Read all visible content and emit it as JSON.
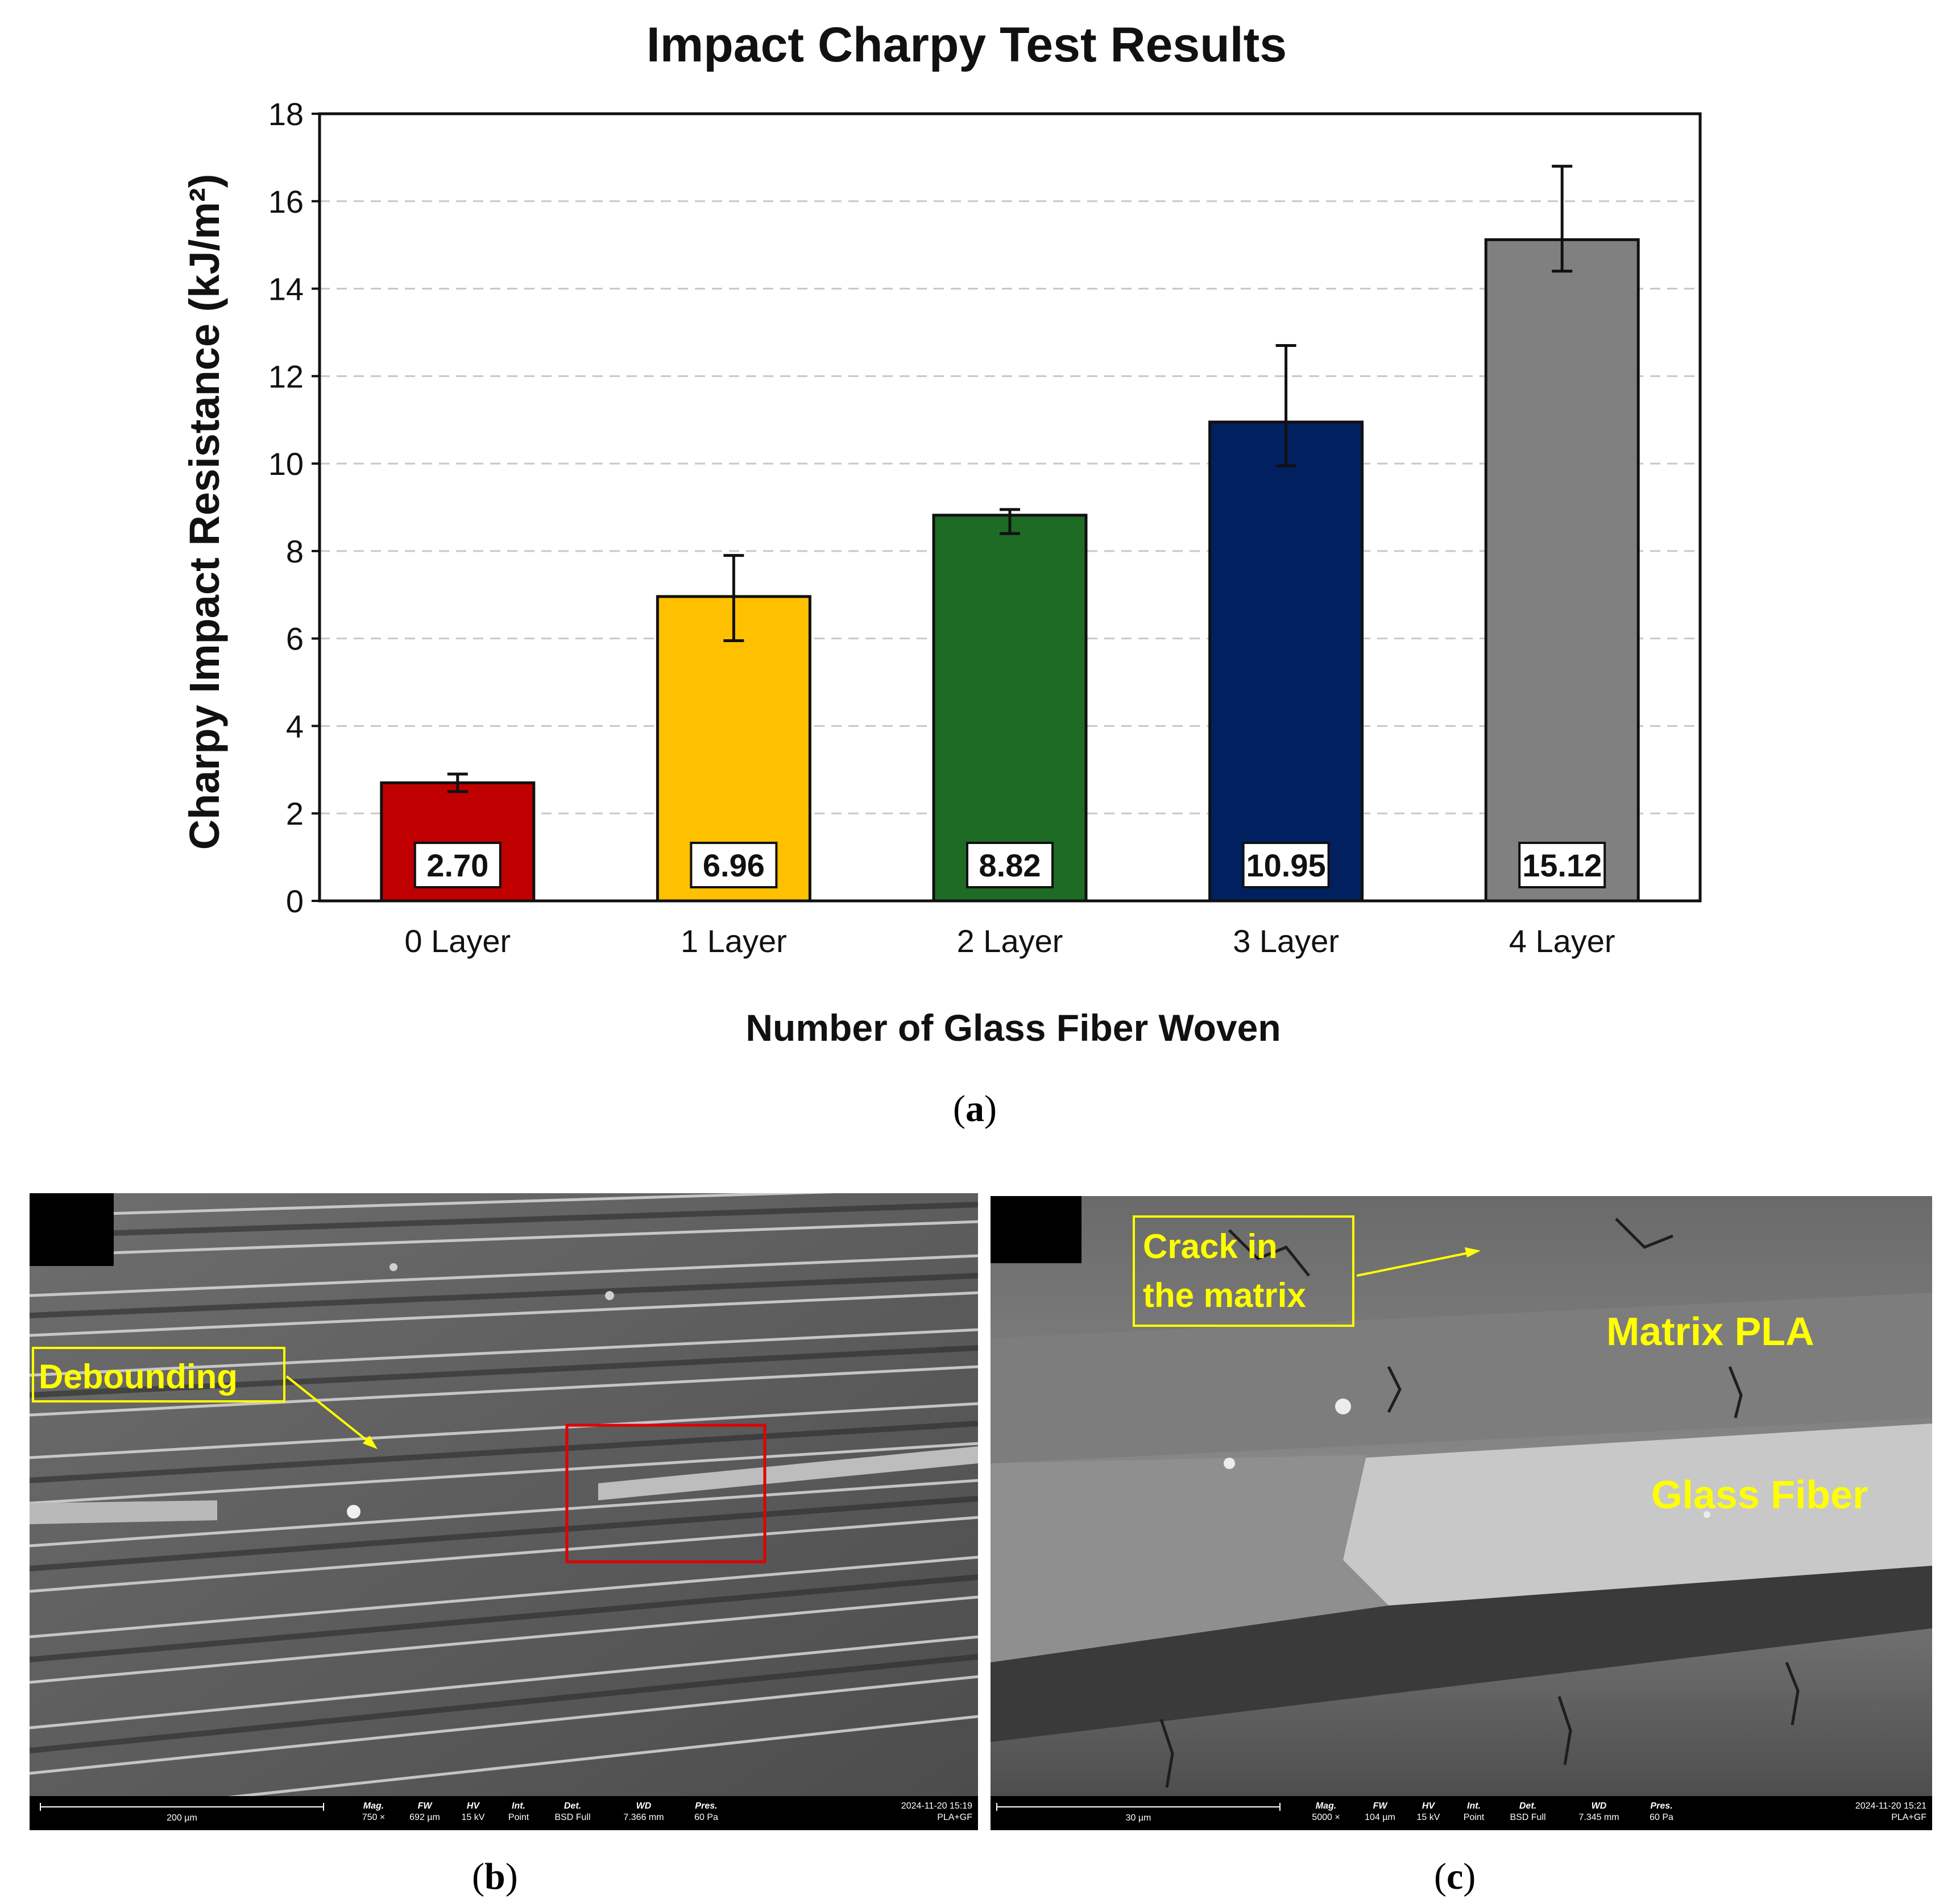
{
  "chart_data": {
    "type": "bar",
    "title": "Impact Charpy Test Results",
    "xlabel": "Number of Glass Fiber Woven",
    "ylabel": "Charpy Impact Resistance (kJ/m²)",
    "ylim": [
      0,
      18
    ],
    "yticks": [
      0,
      2,
      4,
      6,
      8,
      10,
      12,
      14,
      16,
      18
    ],
    "grid": "horizontal dashed",
    "categories": [
      "0 Layer",
      "1 Layer",
      "2 Layer",
      "3 Layer",
      "4 Layer"
    ],
    "values": [
      2.7,
      6.96,
      8.82,
      10.95,
      15.12
    ],
    "value_labels": [
      "2.70",
      "6.96",
      "8.82",
      "10.95",
      "15.12"
    ],
    "error_low": [
      2.5,
      5.95,
      8.4,
      9.95,
      14.4
    ],
    "error_high": [
      2.9,
      7.9,
      8.95,
      12.7,
      16.8
    ],
    "colors": [
      "#c00000",
      "#ffc000",
      "#1e6b25",
      "#002060",
      "#808080"
    ]
  },
  "captions": {
    "a": "a",
    "b": "b",
    "c": "c"
  },
  "panel_b": {
    "annotation": "Debounding",
    "info": {
      "mag_label": "Mag.",
      "mag": "750 ×",
      "fw_label": "FW",
      "fw": "692 µm",
      "hv_label": "HV",
      "hv": "15 kV",
      "int_label": "Int.",
      "int": "Point",
      "det_label": "Det.",
      "det": "BSD Full",
      "wd_label": "WD",
      "wd": "7.366 mm",
      "pres_label": "Pres.",
      "pres": "60 Pa",
      "scale": "200 µm",
      "date": "2024-11-20 15:19",
      "sample": "PLA+GF"
    }
  },
  "panel_c": {
    "annotation_crack": "Crack in\nthe matrix",
    "annotation_matrix": "Matrix PLA",
    "annotation_fiber": "Glass Fiber",
    "info": {
      "mag_label": "Mag.",
      "mag": "5000 ×",
      "fw_label": "FW",
      "fw": "104 µm",
      "hv_label": "HV",
      "hv": "15 kV",
      "int_label": "Int.",
      "int": "Point",
      "det_label": "Det.",
      "det": "BSD Full",
      "wd_label": "WD",
      "wd": "7.345 mm",
      "pres_label": "Pres.",
      "pres": "60 Pa",
      "scale": "30 µm",
      "date": "2024-11-20 15:21",
      "sample": "PLA+GF"
    }
  },
  "colors": {
    "annotation": "#ffff00",
    "roi_box": "#e00000"
  }
}
